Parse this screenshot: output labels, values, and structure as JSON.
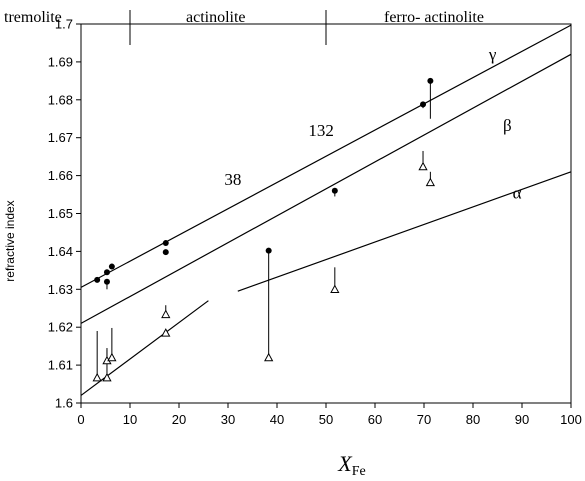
{
  "chart_data": {
    "type": "scatter",
    "xlabel_main": "X",
    "xlabel_sub": "Fe",
    "ylabel": "refractive index",
    "xlim": [
      0,
      100
    ],
    "ylim": [
      1.6,
      1.7
    ],
    "xticks": [
      "0",
      "10",
      "20",
      "30",
      "40",
      "50",
      "60",
      "70",
      "80",
      "90",
      "100"
    ],
    "yticks": [
      "1.6",
      "1.61",
      "1.62",
      "1.63",
      "1.64",
      "1.65",
      "1.66",
      "1.67",
      "1.68",
      "1.69",
      "1.7"
    ],
    "regions": [
      {
        "label": "tremolite",
        "x": 0
      },
      {
        "label": "actinolite",
        "x": 10
      },
      {
        "label": "ferro- actinolite",
        "x": 50
      }
    ],
    "region_boundaries": [
      10,
      50
    ],
    "fit_lines": [
      {
        "label": "γ",
        "x": [
          0,
          100
        ],
        "y": [
          1.6305,
          1.6997
        ]
      },
      {
        "label": "β",
        "x": [
          0,
          100
        ],
        "y": [
          1.621,
          1.692
        ]
      },
      {
        "label": "α",
        "segments": [
          {
            "x": [
              0,
              26
            ],
            "y": [
              1.602,
              1.627
            ]
          },
          {
            "x": [
              32,
              100
            ],
            "y": [
              1.6295,
              1.661
            ]
          }
        ]
      }
    ],
    "line_labels": [
      {
        "text": "γ",
        "x": 84,
        "y": 1.6905
      },
      {
        "text": "β",
        "x": 87,
        "y": 1.6718
      },
      {
        "text": "α",
        "x": 89,
        "y": 1.654
      }
    ],
    "annotations": [
      {
        "text": "132",
        "x": 49,
        "y": 1.6705
      },
      {
        "text": "38",
        "x": 31,
        "y": 1.6575
      }
    ],
    "series": [
      {
        "name": "γ measured",
        "marker": "filled-circle",
        "points": [
          {
            "x": 3.3,
            "y": 1.6325
          },
          {
            "x": 5.3,
            "y": 1.6345
          },
          {
            "x": 5.3,
            "y": 1.632
          },
          {
            "x": 6.3,
            "y": 1.636
          },
          {
            "x": 17.3,
            "y": 1.6422
          },
          {
            "x": 17.3,
            "y": 1.6398
          },
          {
            "x": 38.3,
            "y": 1.6402
          },
          {
            "x": 51.8,
            "y": 1.656
          },
          {
            "x": 69.8,
            "y": 1.6788
          },
          {
            "x": 71.3,
            "y": 1.685
          }
        ]
      },
      {
        "name": "α measured",
        "marker": "open-triangle",
        "points": [
          {
            "x": 3.3,
            "y": 1.6065
          },
          {
            "x": 5.3,
            "y": 1.6065
          },
          {
            "x": 5.3,
            "y": 1.611
          },
          {
            "x": 6.3,
            "y": 1.6118
          },
          {
            "x": 17.3,
            "y": 1.6183
          },
          {
            "x": 17.3,
            "y": 1.6232
          },
          {
            "x": 38.3,
            "y": 1.6118
          },
          {
            "x": 51.8,
            "y": 1.6298
          },
          {
            "x": 69.8,
            "y": 1.6622
          },
          {
            "x": 71.3,
            "y": 1.658
          }
        ]
      }
    ],
    "stems": [
      {
        "x": 3.3,
        "y": [
          1.6065,
          1.619
        ]
      },
      {
        "x": 5.3,
        "y": [
          1.6065,
          1.6145
        ]
      },
      {
        "x": 5.3,
        "y": [
          1.611,
          1.614
        ]
      },
      {
        "x": 6.3,
        "y": [
          1.6118,
          1.6198
        ]
      },
      {
        "x": 17.3,
        "y": [
          1.6232,
          1.6258
        ]
      },
      {
        "x": 38.3,
        "y": [
          1.6118,
          1.6402
        ]
      },
      {
        "x": 51.8,
        "y": [
          1.6298,
          1.6358
        ]
      },
      {
        "x": 69.8,
        "y": [
          1.6622,
          1.6665
        ]
      },
      {
        "x": 71.3,
        "y": [
          1.658,
          1.661
        ]
      },
      {
        "x": 71.3,
        "y": [
          1.675,
          1.685
        ]
      },
      {
        "x": 5.3,
        "y": [
          1.63,
          1.632
        ]
      },
      {
        "x": 51.8,
        "y": [
          1.6545,
          1.656
        ]
      },
      {
        "x": 69.8,
        "y": [
          1.6778,
          1.6788
        ]
      }
    ],
    "grid": false
  }
}
